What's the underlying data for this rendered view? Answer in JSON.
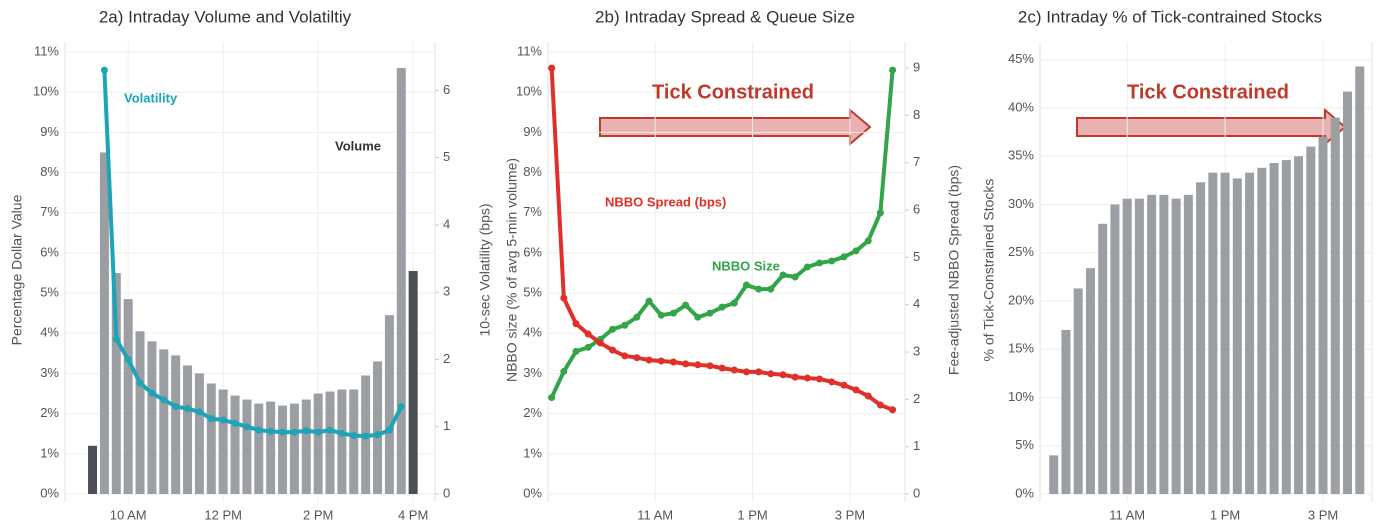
{
  "chart_data": [
    {
      "type": "bar",
      "title": "2a) Intraday Volume and Volatiltiy",
      "y_label": "Percentage Dollar Value",
      "y2_label": "10-sec Volatility (bps)",
      "x": [
        9.25,
        9.5,
        9.75,
        10,
        10.25,
        10.5,
        10.75,
        11,
        11.25,
        11.5,
        11.75,
        12,
        12.25,
        12.5,
        12.75,
        13,
        13.25,
        13.5,
        13.75,
        14,
        14.25,
        14.5,
        14.75,
        15,
        15.25,
        15.5,
        15.75,
        16
      ],
      "xlim": [
        8.67,
        16.46
      ],
      "xticks": [
        {
          "value": 10,
          "label": "10 AM"
        },
        {
          "value": 12,
          "label": "12 PM"
        },
        {
          "value": 14,
          "label": "2 PM"
        },
        {
          "value": 16,
          "label": "4 PM"
        }
      ],
      "ylim": [
        0,
        11
      ],
      "yticks": [
        {
          "value": 0,
          "label": "0%"
        },
        {
          "value": 1,
          "label": "1%"
        },
        {
          "value": 2,
          "label": "2%"
        },
        {
          "value": 3,
          "label": "3%"
        },
        {
          "value": 4,
          "label": "4%"
        },
        {
          "value": 5,
          "label": "5%"
        },
        {
          "value": 6,
          "label": "6%"
        },
        {
          "value": 7,
          "label": "7%"
        },
        {
          "value": 8,
          "label": "8%"
        },
        {
          "value": 9,
          "label": "9%"
        },
        {
          "value": 10,
          "label": "10%"
        },
        {
          "value": 11,
          "label": "11%"
        }
      ],
      "y2lim": [
        0,
        6.57
      ],
      "y2ticks": [
        0,
        1,
        2,
        3,
        4,
        5,
        6
      ],
      "grid": true,
      "series": [
        {
          "name": "Volume",
          "type": "bar",
          "values": [
            1.2,
            8.5,
            5.5,
            4.85,
            4.05,
            3.8,
            3.6,
            3.45,
            3.2,
            3.0,
            2.75,
            2.6,
            2.45,
            2.35,
            2.25,
            2.3,
            2.2,
            2.25,
            2.35,
            2.5,
            2.55,
            2.6,
            2.6,
            2.95,
            3.3,
            4.45,
            10.6,
            5.55
          ],
          "colors": [
            "#4b4e53",
            "#9b9ea3",
            "#9b9ea3",
            "#9b9ea3",
            "#9b9ea3",
            "#9b9ea3",
            "#9b9ea3",
            "#9b9ea3",
            "#9b9ea3",
            "#9b9ea3",
            "#9b9ea3",
            "#9b9ea3",
            "#9b9ea3",
            "#9b9ea3",
            "#9b9ea3",
            "#9b9ea3",
            "#9b9ea3",
            "#9b9ea3",
            "#9b9ea3",
            "#9b9ea3",
            "#9b9ea3",
            "#9b9ea3",
            "#9b9ea3",
            "#9b9ea3",
            "#9b9ea3",
            "#9b9ea3",
            "#9b9ea3",
            "#4b4e53"
          ]
        },
        {
          "name": "Volatility",
          "type": "line",
          "axis": "y2",
          "color": "#1ea3b7",
          "values": [
            null,
            6.3,
            2.3,
            2.0,
            1.65,
            1.5,
            1.4,
            1.3,
            1.27,
            1.22,
            1.12,
            1.1,
            1.05,
            1.0,
            0.95,
            0.93,
            0.92,
            0.92,
            0.94,
            0.92,
            0.95,
            0.9,
            0.87,
            0.86,
            0.88,
            0.95,
            1.3,
            null
          ]
        }
      ],
      "annotations": [
        {
          "text": "Volatility",
          "color": "#1ea3b7"
        },
        {
          "text": "Volume",
          "color": "#333333"
        }
      ]
    },
    {
      "type": "line",
      "title": "2b) Intraday Spread & Queue Size",
      "y_label": "NBBO size (% of avg 5-min volume)",
      "y2_label": "Fee-adjusted NBBO Spread (bps)",
      "x": [
        8.875,
        9.125,
        9.375,
        9.625,
        9.875,
        10.125,
        10.375,
        10.625,
        10.875,
        11.125,
        11.375,
        11.625,
        11.875,
        12.125,
        12.375,
        12.625,
        12.875,
        13.125,
        13.375,
        13.625,
        13.875,
        14.125,
        14.375,
        14.625,
        14.875,
        15.125,
        15.375,
        15.625,
        15.875
      ],
      "xlim": [
        8.8,
        16.13
      ],
      "xticks": [
        {
          "value": 11,
          "label": "11 AM"
        },
        {
          "value": 13,
          "label": "1 PM"
        },
        {
          "value": 15,
          "label": "3 PM"
        }
      ],
      "ylim": [
        0,
        11
      ],
      "yticks": [
        {
          "value": 0,
          "label": "0%"
        },
        {
          "value": 1,
          "label": "1%"
        },
        {
          "value": 2,
          "label": "2%"
        },
        {
          "value": 3,
          "label": "3%"
        },
        {
          "value": 4,
          "label": "4%"
        },
        {
          "value": 5,
          "label": "5%"
        },
        {
          "value": 6,
          "label": "6%"
        },
        {
          "value": 7,
          "label": "7%"
        },
        {
          "value": 8,
          "label": "8%"
        },
        {
          "value": 9,
          "label": "9%"
        },
        {
          "value": 10,
          "label": "10%"
        },
        {
          "value": 11,
          "label": "11%"
        }
      ],
      "y2lim": [
        0,
        9.34
      ],
      "y2ticks": [
        0,
        1,
        2,
        3,
        4,
        5,
        6,
        7,
        8,
        9
      ],
      "grid": true,
      "series": [
        {
          "name": "NBBO Size",
          "type": "line",
          "color": "#33a447",
          "values": [
            2.4,
            3.05,
            3.55,
            3.65,
            3.85,
            4.1,
            4.2,
            4.4,
            4.8,
            4.45,
            4.5,
            4.7,
            4.4,
            4.5,
            4.65,
            4.75,
            5.2,
            5.1,
            5.1,
            5.45,
            5.4,
            5.65,
            5.75,
            5.8,
            5.9,
            6.05,
            6.3,
            7.0,
            10.55
          ]
        },
        {
          "name": "NBBO Spread (bps)",
          "type": "line",
          "axis": "y2",
          "color": "#e0302a",
          "values": [
            9.0,
            4.14,
            3.6,
            3.38,
            3.19,
            3.04,
            2.92,
            2.88,
            2.83,
            2.81,
            2.79,
            2.75,
            2.73,
            2.71,
            2.66,
            2.62,
            2.58,
            2.58,
            2.54,
            2.52,
            2.47,
            2.45,
            2.43,
            2.37,
            2.3,
            2.2,
            2.07,
            1.88,
            1.78
          ]
        }
      ],
      "annotations": [
        {
          "text": "Tick Constrained",
          "color": "#c0392b"
        },
        {
          "text": "NBBO Spread (bps)",
          "color": "#e0302a"
        },
        {
          "text": "NBBO Size",
          "color": "#33a447"
        }
      ]
    },
    {
      "type": "bar",
      "title": "2c) Intraday % of Tick-contrained Stocks",
      "y_label": "% of Tick-Constrained Stocks",
      "x": [
        9.5,
        9.75,
        10,
        10.25,
        10.5,
        10.75,
        11,
        11.25,
        11.5,
        11.75,
        12,
        12.25,
        12.5,
        12.75,
        13,
        13.25,
        13.5,
        13.75,
        14,
        14.25,
        14.5,
        14.75,
        15,
        15.25,
        15.5,
        15.75
      ],
      "xlim": [
        9.22,
        16.0
      ],
      "xticks": [
        {
          "value": 11,
          "label": "11 AM"
        },
        {
          "value": 13,
          "label": "1 PM"
        },
        {
          "value": 15,
          "label": "3 PM"
        }
      ],
      "ylim": [
        0,
        45.8
      ],
      "yticks": [
        {
          "value": 0,
          "label": "0%"
        },
        {
          "value": 5,
          "label": "5%"
        },
        {
          "value": 10,
          "label": "10%"
        },
        {
          "value": 15,
          "label": "15%"
        },
        {
          "value": 20,
          "label": "20%"
        },
        {
          "value": 25,
          "label": "25%"
        },
        {
          "value": 30,
          "label": "30%"
        },
        {
          "value": 35,
          "label": "35%"
        },
        {
          "value": 40,
          "label": "40%"
        },
        {
          "value": 45,
          "label": "45%"
        }
      ],
      "grid": true,
      "series": [
        {
          "type": "bar",
          "color": "#9b9ea3",
          "values": [
            4,
            17,
            21.3,
            23.4,
            28,
            30,
            30.6,
            30.6,
            31,
            31,
            30.6,
            31,
            32.3,
            33.3,
            33.3,
            32.7,
            33.3,
            33.8,
            34.3,
            34.6,
            35,
            36,
            37,
            39,
            41.7,
            44.3
          ]
        }
      ],
      "annotations": [
        {
          "text": "Tick Constrained",
          "color": "#c0392b"
        }
      ]
    }
  ]
}
